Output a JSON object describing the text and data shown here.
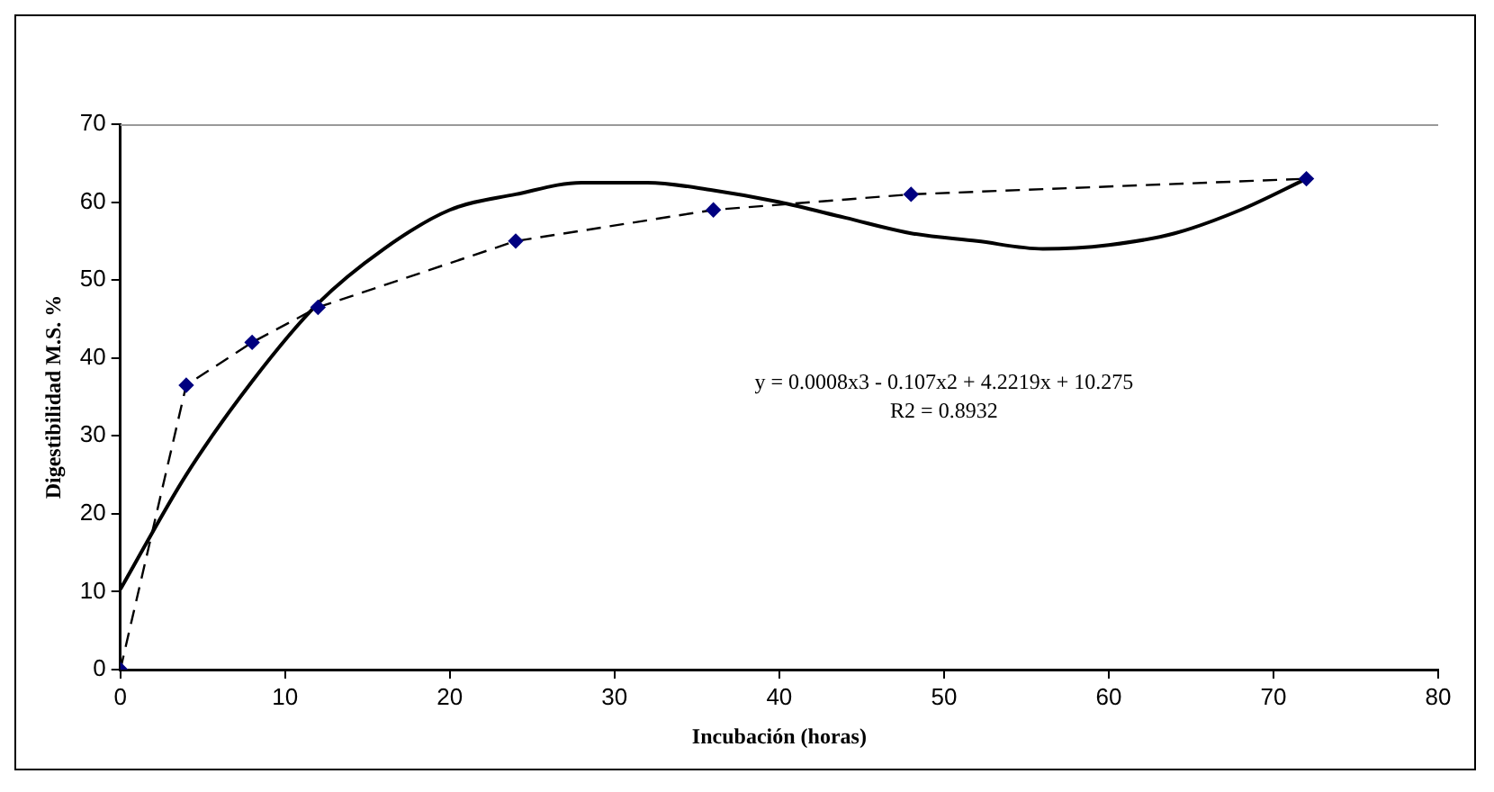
{
  "chart_data": {
    "type": "line",
    "xlabel": "Incubación (horas)",
    "ylabel": "Digestibilidad M.S. %",
    "xlim": [
      0,
      80
    ],
    "xticks": [
      0,
      10,
      20,
      30,
      40,
      50,
      60,
      70,
      80
    ],
    "ylim": [
      0,
      70
    ],
    "yticks": [
      0,
      10,
      20,
      30,
      40,
      50,
      60,
      70
    ],
    "grid": false,
    "legend": false,
    "series": [
      {
        "color": "#000080",
        "marker": "diamond",
        "line_style": "dashed",
        "x": [
          0,
          4,
          8,
          12,
          24,
          36,
          48,
          72
        ],
        "values": [
          0,
          36.5,
          42,
          46.5,
          55,
          59,
          61,
          63
        ]
      },
      {
        "color": "#000000",
        "marker": "none",
        "line_style": "solid",
        "x": [
          0,
          4,
          8,
          12,
          16,
          20,
          24,
          28,
          32,
          36,
          40,
          44,
          48,
          52,
          56,
          60,
          64,
          68,
          72
        ],
        "values": [
          10.3,
          25,
          37,
          47,
          54,
          59,
          61,
          62.5,
          62.5,
          61.5,
          60,
          58,
          56,
          55,
          54,
          54.5,
          56,
          59,
          63
        ]
      }
    ],
    "annotations": [
      "y = 0.0008x3 - 0.107x2 + 4.2219x + 10.275",
      "R2 = 0.8932"
    ]
  }
}
